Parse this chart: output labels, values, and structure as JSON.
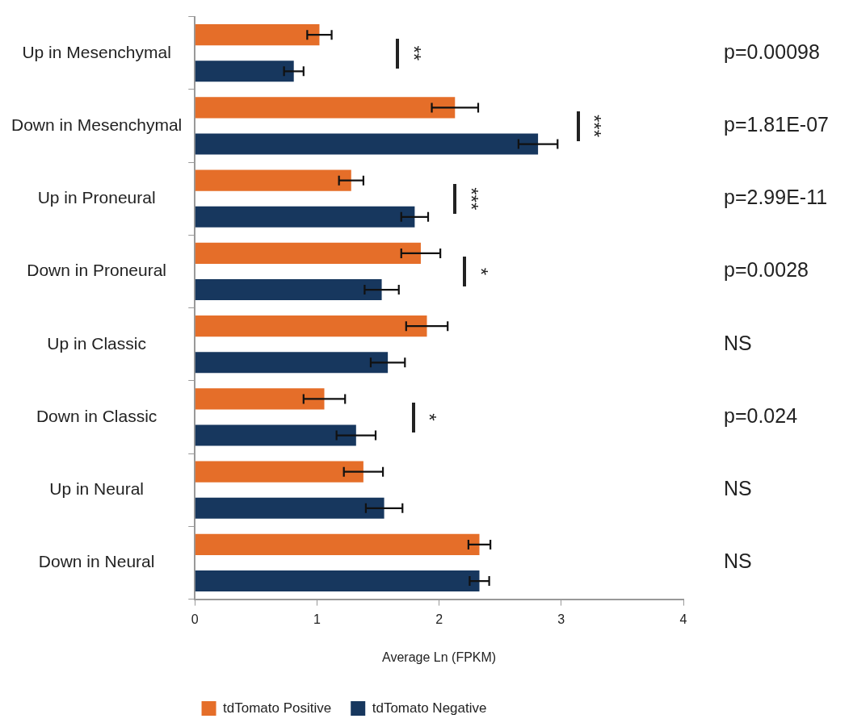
{
  "chart_data": {
    "type": "bar",
    "orientation": "horizontal",
    "xlabel": "Average Ln (FPKM)",
    "categories": [
      "Up in Mesenchymal",
      "Down in Mesenchymal",
      "Up in Proneural",
      "Down in Proneural",
      "Up in Classic",
      "Down in Classic",
      "Up in Neural",
      "Down in Neural"
    ],
    "series": [
      {
        "name": "tdTomato Positive",
        "color": "#e56e29",
        "values": [
          1.02,
          2.13,
          1.28,
          1.85,
          1.9,
          1.06,
          1.38,
          2.33
        ],
        "errors": [
          0.1,
          0.19,
          0.1,
          0.16,
          0.17,
          0.17,
          0.16,
          0.09
        ]
      },
      {
        "name": "tdTomato Negative",
        "color": "#17375e",
        "values": [
          0.81,
          2.81,
          1.8,
          1.53,
          1.58,
          1.32,
          1.55,
          2.33
        ],
        "errors": [
          0.08,
          0.16,
          0.11,
          0.14,
          0.14,
          0.16,
          0.15,
          0.08
        ]
      }
    ],
    "xlim": [
      0,
      4
    ],
    "xticks": [
      0,
      1,
      2,
      3,
      4
    ],
    "grid": false,
    "legend": "bottom",
    "annotations": [
      "p=0.00098",
      "p=1.81E-07",
      "p=2.99E-11",
      "p=0.0028",
      "NS",
      "p=0.024",
      "NS",
      "NS",
      "**",
      "***",
      "***",
      "*",
      "*"
    ]
  }
}
